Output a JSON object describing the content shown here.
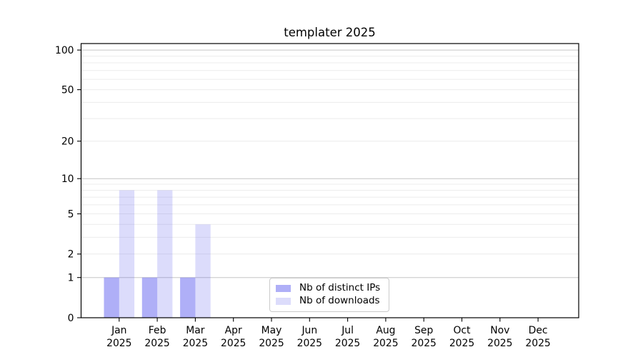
{
  "window": {
    "background": "#ffffff"
  },
  "chart_data": {
    "type": "bar",
    "title": "templater 2025",
    "categories": [
      "Jan",
      "Feb",
      "Mar",
      "Apr",
      "May",
      "Jun",
      "Jul",
      "Aug",
      "Sep",
      "Oct",
      "Nov",
      "Dec"
    ],
    "year_label": "2025",
    "series": [
      {
        "name": "Nb of distinct IPs",
        "color": "#5858ee",
        "alpha": 0.48,
        "composited_hex": "#aaaaf2",
        "values": [
          1,
          1,
          1,
          0,
          0,
          0,
          0,
          0,
          0,
          0,
          0,
          0
        ]
      },
      {
        "name": "Nb of downloads",
        "color": "#5858ee",
        "alpha": 0.21,
        "composited_hex": "#dcdcf7",
        "values": [
          8,
          8,
          4,
          0,
          0,
          0,
          0,
          0,
          0,
          0,
          0,
          0
        ]
      }
    ],
    "xlabel": "",
    "ylabel": "",
    "yticks": [
      0,
      1,
      2,
      5,
      10,
      20,
      50,
      100
    ],
    "ylim": [
      0,
      112
    ],
    "yscale": "log1p",
    "grid": "horizontal, minor lines at 2-9 and 20-90, stronger lines at 1/10/100",
    "legend_position": "lower-center"
  }
}
